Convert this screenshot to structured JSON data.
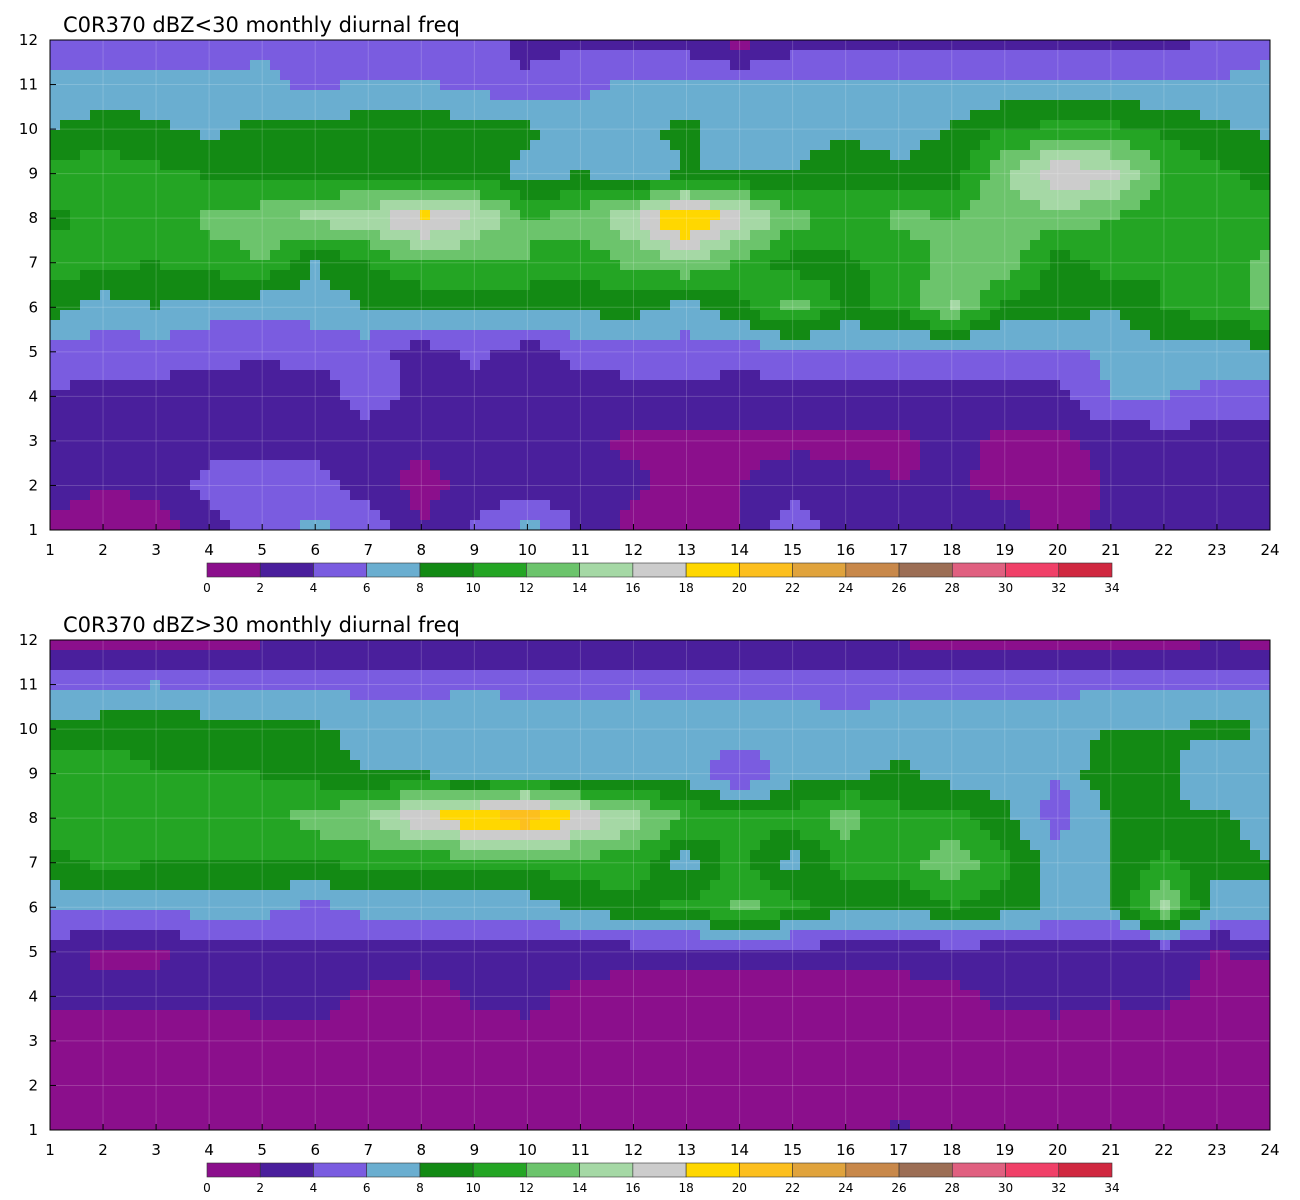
{
  "chart_data": [
    {
      "type": "heatmap",
      "title": "C0R370 dBZ<30 monthly diurnal freq",
      "x_ticks": [
        1,
        2,
        3,
        4,
        5,
        6,
        7,
        8,
        9,
        10,
        11,
        12,
        13,
        14,
        15,
        16,
        17,
        18,
        19,
        20,
        21,
        22,
        23,
        24
      ],
      "y_ticks": [
        1,
        2,
        3,
        4,
        5,
        6,
        7,
        8,
        9,
        10,
        11,
        12
      ],
      "xlim": [
        1,
        24
      ],
      "ylim": [
        1,
        12
      ],
      "grid": true,
      "colorbar": {
        "levels": [
          0,
          2,
          4,
          6,
          8,
          10,
          12,
          14,
          16,
          18,
          20,
          22,
          24,
          26,
          28,
          30,
          32,
          34
        ],
        "colors": [
          "#8b0f8c",
          "#4a1f9c",
          "#7a5ce0",
          "#6aaed0",
          "#138a14",
          "#24a524",
          "#6cc46c",
          "#a5d8a5",
          "#cccccc",
          "#ffd700",
          "#fcbf1e",
          "#e0a33c",
          "#c8884a",
          "#9c6e55",
          "#e06080",
          "#f04068",
          "#d02840"
        ]
      },
      "grid_values": [
        [
          1.8,
          1.0,
          0.8,
          3.2,
          5.0,
          6.5,
          5.5,
          2.0,
          4.2,
          7.0,
          3.6,
          1.2,
          0.5,
          1.8,
          5.4,
          3.0,
          2.5,
          2.8,
          3.4,
          1.0,
          2.6,
          3.0,
          3.8,
          2.0
        ],
        [
          2.4,
          2.2,
          2.4,
          4.8,
          5.5,
          5.0,
          3.0,
          1.2,
          2.8,
          3.0,
          2.8,
          2.5,
          1.2,
          2.0,
          3.2,
          2.8,
          2.0,
          2.2,
          1.5,
          1.2,
          2.2,
          2.4,
          2.5,
          2.2
        ],
        [
          2.8,
          3.0,
          3.0,
          3.2,
          2.8,
          3.0,
          2.8,
          2.5,
          2.5,
          2.5,
          2.5,
          1.5,
          1.5,
          1.5,
          1.5,
          1.5,
          1.5,
          2.6,
          1.6,
          1.6,
          2.5,
          3.0,
          3.0,
          3.2
        ],
        [
          3.8,
          3.2,
          3.2,
          3.0,
          3.4,
          3.0,
          5.0,
          3.2,
          3.0,
          2.5,
          3.0,
          3.2,
          3.2,
          3.0,
          3.0,
          3.2,
          3.2,
          3.0,
          3.0,
          3.2,
          6.2,
          6.0,
          5.5,
          5.4
        ],
        [
          5.5,
          5.0,
          5.0,
          4.5,
          4.2,
          4.5,
          5.0,
          3.0,
          4.5,
          3.0,
          4.8,
          5.0,
          5.2,
          4.8,
          5.5,
          5.5,
          5.2,
          5.2,
          5.6,
          5.6,
          6.4,
          7.0,
          7.0,
          7.5
        ],
        [
          9.0,
          7.0,
          8.0,
          7.0,
          6.5,
          7.0,
          8.0,
          8.0,
          8.5,
          8.0,
          8.5,
          9.0,
          7.2,
          9.5,
          13.0,
          9.5,
          10.5,
          14.5,
          9.5,
          9.0,
          8.0,
          10.2,
          11.0,
          12.5
        ],
        [
          11.0,
          10.5,
          10.0,
          11.0,
          12.0,
          8.0,
          10.0,
          12.0,
          12.0,
          12.0,
          10.5,
          12.5,
          14.0,
          11.5,
          9.0,
          9.5,
          11.0,
          12.5,
          13.5,
          9.0,
          11.0,
          10.0,
          11.0,
          12.5
        ],
        [
          9.5,
          10.5,
          11.0,
          12.5,
          13.0,
          15.0,
          15.0,
          19.0,
          16.0,
          12.0,
          13.0,
          16.0,
          21.0,
          17.0,
          13.0,
          11.0,
          12.5,
          12.0,
          13.0,
          13.0,
          12.0,
          10.5,
          10.0,
          10.5
        ],
        [
          11.0,
          11.0,
          10.5,
          9.8,
          9.5,
          9.0,
          9.5,
          9.0,
          9.5,
          7.0,
          8.0,
          7.0,
          8.0,
          8.0,
          8.0,
          9.5,
          8.5,
          9.0,
          13.5,
          18.0,
          16.5,
          12.0,
          10.5,
          9.5
        ],
        [
          8.0,
          9.0,
          8.5,
          7.5,
          8.5,
          8.5,
          9.0,
          9.0,
          9.0,
          8.5,
          7.0,
          7.5,
          8.5,
          7.0,
          7.0,
          7.5,
          7.0,
          8.2,
          10.0,
          10.5,
          10.5,
          9.5,
          8.5,
          7.5
        ],
        [
          6.2,
          6.5,
          6.5,
          6.2,
          6.5,
          5.5,
          6.5,
          6.2,
          5.5,
          4.5,
          5.5,
          6.5,
          6.0,
          6.0,
          6.0,
          6.0,
          6.2,
          6.0,
          6.5,
          6.5,
          6.5,
          6.0,
          6.2,
          6.6
        ],
        [
          5.2,
          5.0,
          5.0,
          5.2,
          5.5,
          5.2,
          4.0,
          4.5,
          5.0,
          3.2,
          3.5,
          3.0,
          3.0,
          1.0,
          3.2,
          3.2,
          3.0,
          3.0,
          3.2,
          3.2,
          3.0,
          3.0,
          4.8,
          5.5
        ]
      ]
    },
    {
      "type": "heatmap",
      "title": "C0R370 dBZ>30 monthly diurnal freq",
      "x_ticks": [
        1,
        2,
        3,
        4,
        5,
        6,
        7,
        8,
        9,
        10,
        11,
        12,
        13,
        14,
        15,
        16,
        17,
        18,
        19,
        20,
        21,
        22,
        23,
        24
      ],
      "y_ticks": [
        1,
        2,
        3,
        4,
        5,
        6,
        7,
        8,
        9,
        10,
        11,
        12
      ],
      "xlim": [
        1,
        24
      ],
      "ylim": [
        1,
        12
      ],
      "grid": true,
      "colorbar": {
        "levels": [
          0,
          2,
          4,
          6,
          8,
          10,
          12,
          14,
          16,
          18,
          20,
          22,
          24,
          26,
          28,
          30,
          32,
          34
        ],
        "colors": [
          "#8b0f8c",
          "#4a1f9c",
          "#7a5ce0",
          "#6aaed0",
          "#138a14",
          "#24a524",
          "#6cc46c",
          "#a5d8a5",
          "#cccccc",
          "#ffd700",
          "#fcbf1e",
          "#e0a33c",
          "#c8884a",
          "#9c6e55",
          "#e06080",
          "#f04068",
          "#d02840"
        ]
      },
      "grid_values": [
        [
          0.5,
          0.5,
          0.5,
          0.5,
          0.5,
          1.4,
          0.5,
          0.5,
          0.5,
          1.2,
          0.5,
          0.5,
          0.5,
          0.5,
          0.5,
          0.5,
          2.4,
          0.5,
          0.5,
          0.5,
          0.5,
          0.5,
          0.5,
          0.5
        ],
        [
          0.5,
          0.5,
          0.5,
          0.8,
          0.5,
          0.5,
          0.5,
          0.5,
          0.5,
          0.5,
          0.5,
          0.5,
          0.5,
          0.5,
          0.5,
          0.5,
          1.2,
          0.5,
          0.5,
          0.5,
          0.5,
          0.5,
          0.5,
          0.5
        ],
        [
          1.0,
          1.0,
          1.0,
          1.0,
          1.0,
          1.0,
          1.0,
          1.0,
          1.0,
          1.0,
          1.0,
          1.0,
          1.0,
          1.0,
          1.0,
          1.0,
          1.0,
          1.0,
          1.0,
          1.0,
          1.0,
          1.0,
          1.0,
          1.0
        ],
        [
          2.6,
          2.4,
          2.4,
          2.4,
          2.8,
          3.0,
          1.6,
          1.0,
          2.4,
          2.8,
          1.2,
          1.0,
          1.0,
          1.0,
          1.0,
          1.0,
          1.0,
          1.6,
          2.4,
          2.8,
          2.2,
          2.4,
          1.6,
          1.4
        ],
        [
          3.0,
          1.6,
          1.6,
          3.0,
          3.2,
          3.2,
          3.0,
          3.0,
          3.0,
          3.0,
          3.0,
          3.0,
          3.0,
          2.6,
          3.0,
          3.0,
          3.0,
          3.0,
          3.0,
          3.0,
          2.4,
          2.2,
          2.0,
          2.2
        ],
        [
          6.6,
          6.8,
          6.6,
          6.8,
          6.8,
          5.5,
          6.8,
          6.8,
          6.8,
          6.8,
          8.5,
          9.6,
          10.5,
          12.6,
          11.0,
          8.5,
          8.0,
          10.0,
          9.0,
          7.5,
          7.5,
          14.5,
          7.0,
          8.0
        ],
        [
          9.0,
          10.5,
          10.0,
          10.0,
          10.0,
          10.0,
          10.5,
          10.5,
          10.5,
          11.0,
          11.0,
          11.0,
          7.0,
          11.0,
          7.0,
          11.0,
          11.0,
          13.5,
          10.5,
          7.0,
          8.0,
          10.5,
          8.5,
          8.0
        ],
        [
          12.0,
          11.0,
          11.0,
          12.0,
          11.0,
          13.0,
          14.0,
          18.0,
          20.0,
          22.0,
          18.0,
          15.0,
          12.0,
          10.5,
          11.0,
          13.0,
          10.5,
          11.0,
          8.5,
          5.0,
          8.0,
          8.0,
          8.5,
          7.0
        ],
        [
          11.0,
          11.0,
          10.0,
          10.0,
          10.0,
          9.0,
          8.0,
          8.0,
          6.0,
          7.0,
          6.0,
          7.0,
          7.0,
          4.0,
          7.0,
          7.5,
          8.5,
          7.0,
          7.0,
          6.0,
          10.0,
          9.0,
          6.0,
          7.0
        ],
        [
          9.0,
          9.0,
          9.5,
          9.0,
          9.0,
          8.5,
          7.0,
          7.0,
          8.0,
          7.0,
          7.0,
          8.0,
          7.0,
          7.0,
          7.0,
          6.5,
          7.0,
          7.0,
          7.0,
          7.0,
          8.0,
          8.0,
          8.5,
          8.0
        ],
        [
          5.8,
          5.8,
          6.0,
          5.5,
          5.5,
          5.6,
          5.5,
          5.5,
          5.6,
          5.5,
          5.2,
          5.4,
          5.5,
          5.2,
          5.4,
          5.4,
          5.4,
          5.2,
          5.2,
          5.4,
          5.8,
          5.8,
          5.8,
          5.8
        ],
        [
          1.2,
          1.4,
          1.4,
          1.2,
          1.6,
          1.6,
          1.6,
          1.8,
          1.8,
          1.8,
          1.8,
          1.6,
          1.8,
          1.6,
          1.6,
          1.6,
          1.6,
          1.4,
          1.4,
          1.2,
          1.4,
          1.4,
          1.6,
          1.4
        ]
      ]
    }
  ]
}
